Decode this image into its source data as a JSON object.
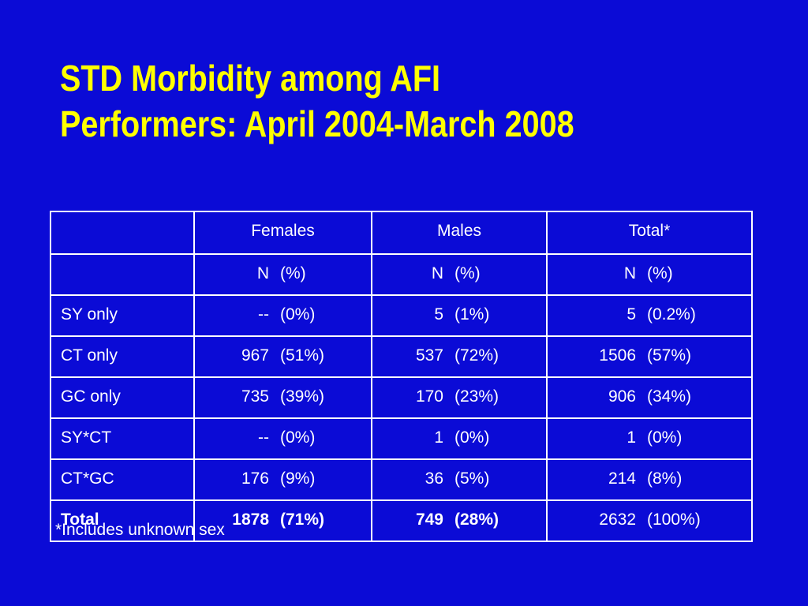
{
  "title": {
    "line1": "STD Morbidity among AFI",
    "line2": "Performers: April 2004-March 2008"
  },
  "colors": {
    "background": "#0b0bd6",
    "title": "#ffff00",
    "text": "#ffffff"
  },
  "table": {
    "headers": [
      "",
      "Females",
      "Males",
      "Total*"
    ],
    "subheader": {
      "females": {
        "n": "N",
        "pct": "(%)"
      },
      "males": {
        "n": "N",
        "pct": "(%)"
      },
      "total": {
        "n": "N",
        "pct": "(%)"
      }
    },
    "rows": [
      {
        "label": "SY only",
        "females": {
          "n": "--",
          "pct": "(0%)"
        },
        "males": {
          "n": "5",
          "pct": "(1%)"
        },
        "total": {
          "n": "5",
          "pct": "(0.2%)"
        }
      },
      {
        "label": "CT only",
        "females": {
          "n": "967",
          "pct": "(51%)"
        },
        "males": {
          "n": "537",
          "pct": "(72%)"
        },
        "total": {
          "n": "1506",
          "pct": "(57%)"
        }
      },
      {
        "label": "GC only",
        "females": {
          "n": "735",
          "pct": "(39%)"
        },
        "males": {
          "n": "170",
          "pct": "(23%)"
        },
        "total": {
          "n": "906",
          "pct": "(34%)"
        }
      },
      {
        "label": "SY*CT",
        "females": {
          "n": "--",
          "pct": "(0%)"
        },
        "males": {
          "n": "1",
          "pct": "(0%)"
        },
        "total": {
          "n": "1",
          "pct": "(0%)"
        }
      },
      {
        "label": "CT*GC",
        "females": {
          "n": "176",
          "pct": "(9%)"
        },
        "males": {
          "n": "36",
          "pct": "(5%)"
        },
        "total": {
          "n": "214",
          "pct": "(8%)"
        }
      },
      {
        "label": "Total",
        "females": {
          "n": "1878",
          "pct": "(71%)"
        },
        "males": {
          "n": "749",
          "pct": "(28%)"
        },
        "total": {
          "n": "2632",
          "pct": "(100%)"
        }
      }
    ]
  },
  "footnote": "*Includes unknown sex"
}
